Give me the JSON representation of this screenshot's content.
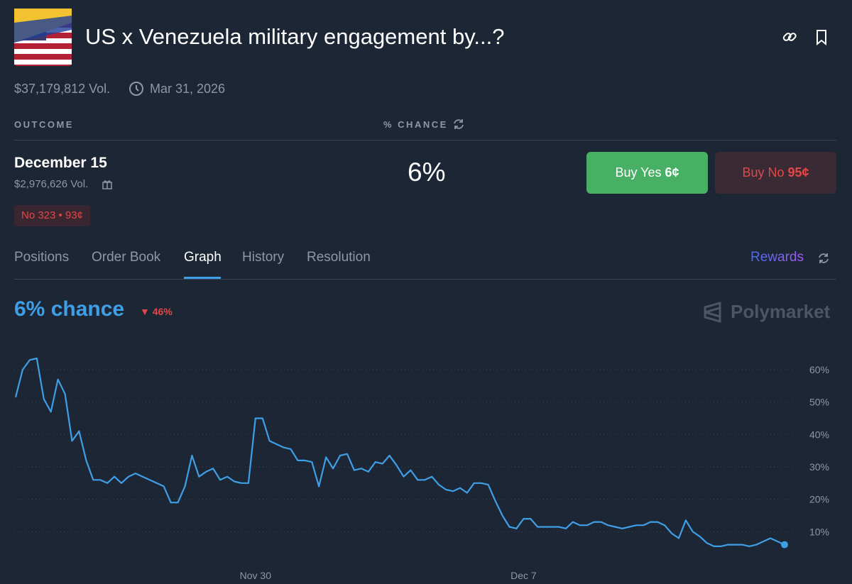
{
  "header": {
    "title": "US x Venezuela military engagement by...?",
    "volume": "$37,179,812 Vol.",
    "end_date": "Mar 31, 2026"
  },
  "table": {
    "columns": [
      "OUTCOME",
      "% CHANCE"
    ],
    "row": {
      "name": "December 15",
      "volume": "$2,976,626 Vol.",
      "chance": "6%",
      "buy_yes": "Buy Yes",
      "yes_price": "6¢",
      "buy_no": "Buy No",
      "no_price": "95¢",
      "position": "No 323 • 93¢"
    }
  },
  "tabs": [
    "Positions",
    "Order Book",
    "Graph",
    "History",
    "Resolution"
  ],
  "rewards": "Rewards",
  "summary": {
    "chance": "6% chance",
    "change": "46%",
    "brand": "Polymarket"
  },
  "chart_data": {
    "type": "line",
    "color": "#3f9fe6",
    "grid": true,
    "categories": [
      null,
      null,
      null,
      null,
      null,
      null,
      null,
      null,
      null,
      null,
      null,
      null,
      null,
      null,
      null,
      null,
      null,
      null,
      null,
      null,
      null,
      null,
      null,
      null,
      null,
      null,
      null,
      null,
      null,
      null,
      null,
      null,
      null,
      null,
      "Nov 30",
      null,
      null,
      null,
      null,
      null,
      null,
      null,
      null,
      null,
      null,
      null,
      null,
      null,
      null,
      null,
      null,
      null,
      null,
      null,
      null,
      null,
      null,
      null,
      null,
      null,
      null,
      null,
      null,
      null,
      null,
      null,
      null,
      null,
      null,
      null,
      null,
      null,
      "Dec 7",
      null,
      null,
      null,
      null,
      null,
      null,
      null,
      null,
      null,
      null,
      null,
      null,
      null,
      null,
      null,
      null,
      null,
      null,
      null,
      null,
      null,
      null,
      null,
      null,
      null,
      null,
      null,
      null,
      null,
      null,
      null,
      null,
      null,
      null,
      null,
      null,
      null
    ],
    "values": [
      51.5,
      60,
      63,
      63.5,
      51,
      47,
      57,
      52.5,
      38,
      41,
      32,
      26,
      26,
      25,
      27,
      25,
      27,
      28,
      27,
      26,
      25,
      24,
      19,
      19,
      24,
      33.5,
      27,
      28.5,
      29.5,
      26,
      27,
      25.5,
      25,
      25,
      45,
      45,
      38,
      37,
      36,
      35.5,
      32,
      32,
      31.5,
      24,
      33,
      29.5,
      33.5,
      34,
      29,
      29.5,
      28.5,
      31.5,
      31,
      33.5,
      30.5,
      27,
      29,
      26,
      26,
      27,
      24.5,
      23,
      22.5,
      23.5,
      22,
      25,
      25,
      24.5,
      19.5,
      15,
      11.5,
      11,
      14,
      14,
      11.5,
      11.5,
      11.5,
      11.5,
      11,
      13,
      12,
      12,
      13,
      13,
      12,
      11.5,
      11,
      11.5,
      12,
      12,
      13,
      13,
      12,
      9.5,
      8,
      13.5,
      10,
      8.5,
      6.5,
      5.5,
      5.5,
      6,
      6,
      6,
      5.5,
      6,
      7,
      8,
      7,
      6
    ],
    "ylim": [
      0,
      67
    ],
    "yticks": [
      {
        "value": 10,
        "label": "10%"
      },
      {
        "value": 20,
        "label": "20%"
      },
      {
        "value": 30,
        "label": "30%"
      },
      {
        "value": 40,
        "label": "40%"
      },
      {
        "value": 50,
        "label": "50%"
      },
      {
        "value": 60,
        "label": "60%"
      }
    ]
  }
}
